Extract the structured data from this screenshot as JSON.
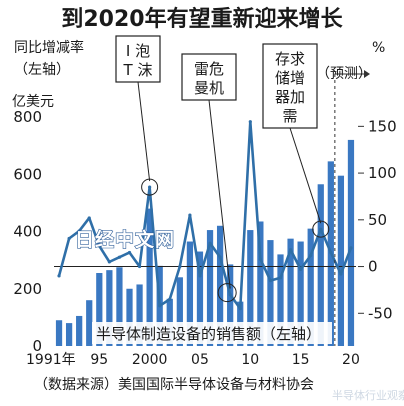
{
  "chart_data": {
    "type": "bar+line",
    "title": "到2020年有望重新迎来增长",
    "left_axis": {
      "label_lines": [
        "亿美元"
      ],
      "range": [
        0,
        800
      ],
      "ticks": [
        0,
        200,
        400,
        600,
        800
      ]
    },
    "right_axis": {
      "label_lines": [
        "同比增减率",
        "（左轴）"
      ],
      "unit": "%",
      "range": [
        -85,
        160
      ],
      "ticks": [
        -50,
        0,
        50,
        100,
        150
      ]
    },
    "x": {
      "years": [
        1991,
        1992,
        1993,
        1994,
        1995,
        1996,
        1997,
        1998,
        1999,
        2000,
        2001,
        2002,
        2003,
        2004,
        2005,
        2006,
        2007,
        2008,
        2009,
        2010,
        2011,
        2012,
        2013,
        2014,
        2015,
        2016,
        2017,
        2018,
        2019,
        2020
      ],
      "tick_labels": [
        {
          "year": 1991,
          "text": "1991年"
        },
        {
          "year": 1995,
          "text": "95"
        },
        {
          "year": 2000,
          "text": "2000"
        },
        {
          "year": 2005,
          "text": "05"
        },
        {
          "year": 2010,
          "text": "10"
        },
        {
          "year": 2015,
          "text": "15"
        },
        {
          "year": 2020,
          "text": "20"
        }
      ]
    },
    "series": [
      {
        "name": "半导体制造设备的销售额（左轴）",
        "type": "bar",
        "axis": "left",
        "color": "#3a78c2",
        "values": [
          90,
          80,
          105,
          160,
          255,
          265,
          275,
          200,
          215,
          480,
          280,
          165,
          240,
          365,
          330,
          405,
          420,
          285,
          155,
          405,
          435,
          370,
          320,
          375,
          365,
          410,
          565,
          645,
          595,
          720
        ]
      },
      {
        "type": "line",
        "axis": "right",
        "color": "#2f6fa8",
        "values": [
          -10,
          30,
          38,
          52,
          22,
          5,
          10,
          15,
          0,
          85,
          -42,
          -35,
          0,
          55,
          -10,
          25,
          10,
          -30,
          -45,
          155,
          8,
          -15,
          -12,
          18,
          -3,
          12,
          40,
          15,
          -8,
          20
        ]
      }
    ],
    "projection_from_year": 2019,
    "projection_label": "（预测）",
    "annotations": [
      {
        "lines": [
          "I 泡",
          "T 沫"
        ],
        "year": 2000
      },
      {
        "lines": [
          "雷危",
          "曼机"
        ],
        "year": 2008
      },
      {
        "lines": [
          "存求",
          "储增",
          "器加",
          "需"
        ],
        "year": 2017
      }
    ],
    "watermark": "日经中文网",
    "source": "（数据来源）美国国际半导体设备与材料协会",
    "credit": "半导体行业观察"
  }
}
